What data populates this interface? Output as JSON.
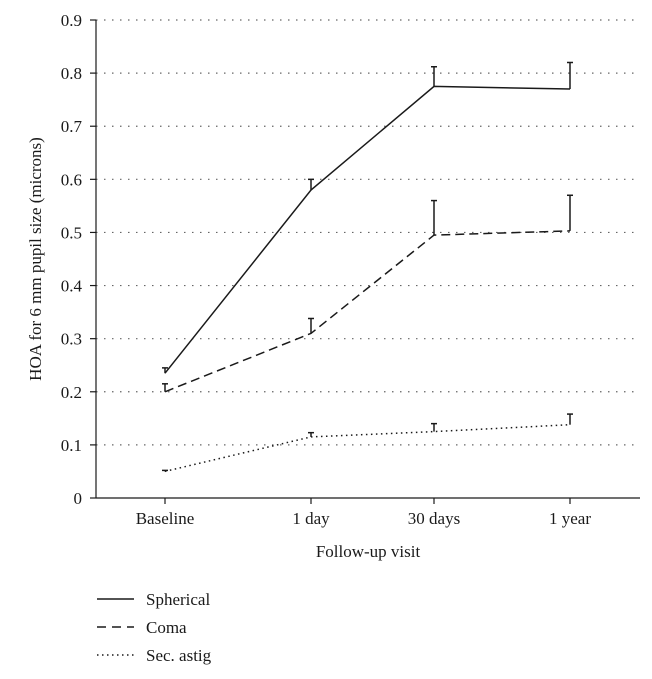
{
  "chart_data": {
    "type": "line",
    "title": "",
    "xlabel": "Follow-up visit",
    "ylabel": "HOA for 6 mm pupil size (microns)",
    "categories": [
      "Baseline",
      "1 day",
      "30 days",
      "1 year"
    ],
    "ylim": [
      0,
      0.9
    ],
    "yticks": [
      "0",
      "0.1",
      "0.2",
      "0.3",
      "0.4",
      "0.5",
      "0.6",
      "0.7",
      "0.8",
      "0.9"
    ],
    "grid": "horizontal dotted",
    "legend_position": "bottom-left",
    "series": [
      {
        "name": "Spherical",
        "style": "solid",
        "values": [
          0.235,
          0.58,
          0.775,
          0.77
        ],
        "error_upper": [
          0.245,
          0.6,
          0.812,
          0.82
        ]
      },
      {
        "name": "Coma",
        "style": "dashed",
        "values": [
          0.2,
          0.31,
          0.495,
          0.503
        ],
        "error_upper": [
          0.215,
          0.338,
          0.56,
          0.57
        ]
      },
      {
        "name": "Sec. astig",
        "style": "dotted",
        "values": [
          0.05,
          0.115,
          0.125,
          0.138
        ],
        "error_upper": [
          0.052,
          0.123,
          0.14,
          0.158
        ]
      }
    ]
  }
}
